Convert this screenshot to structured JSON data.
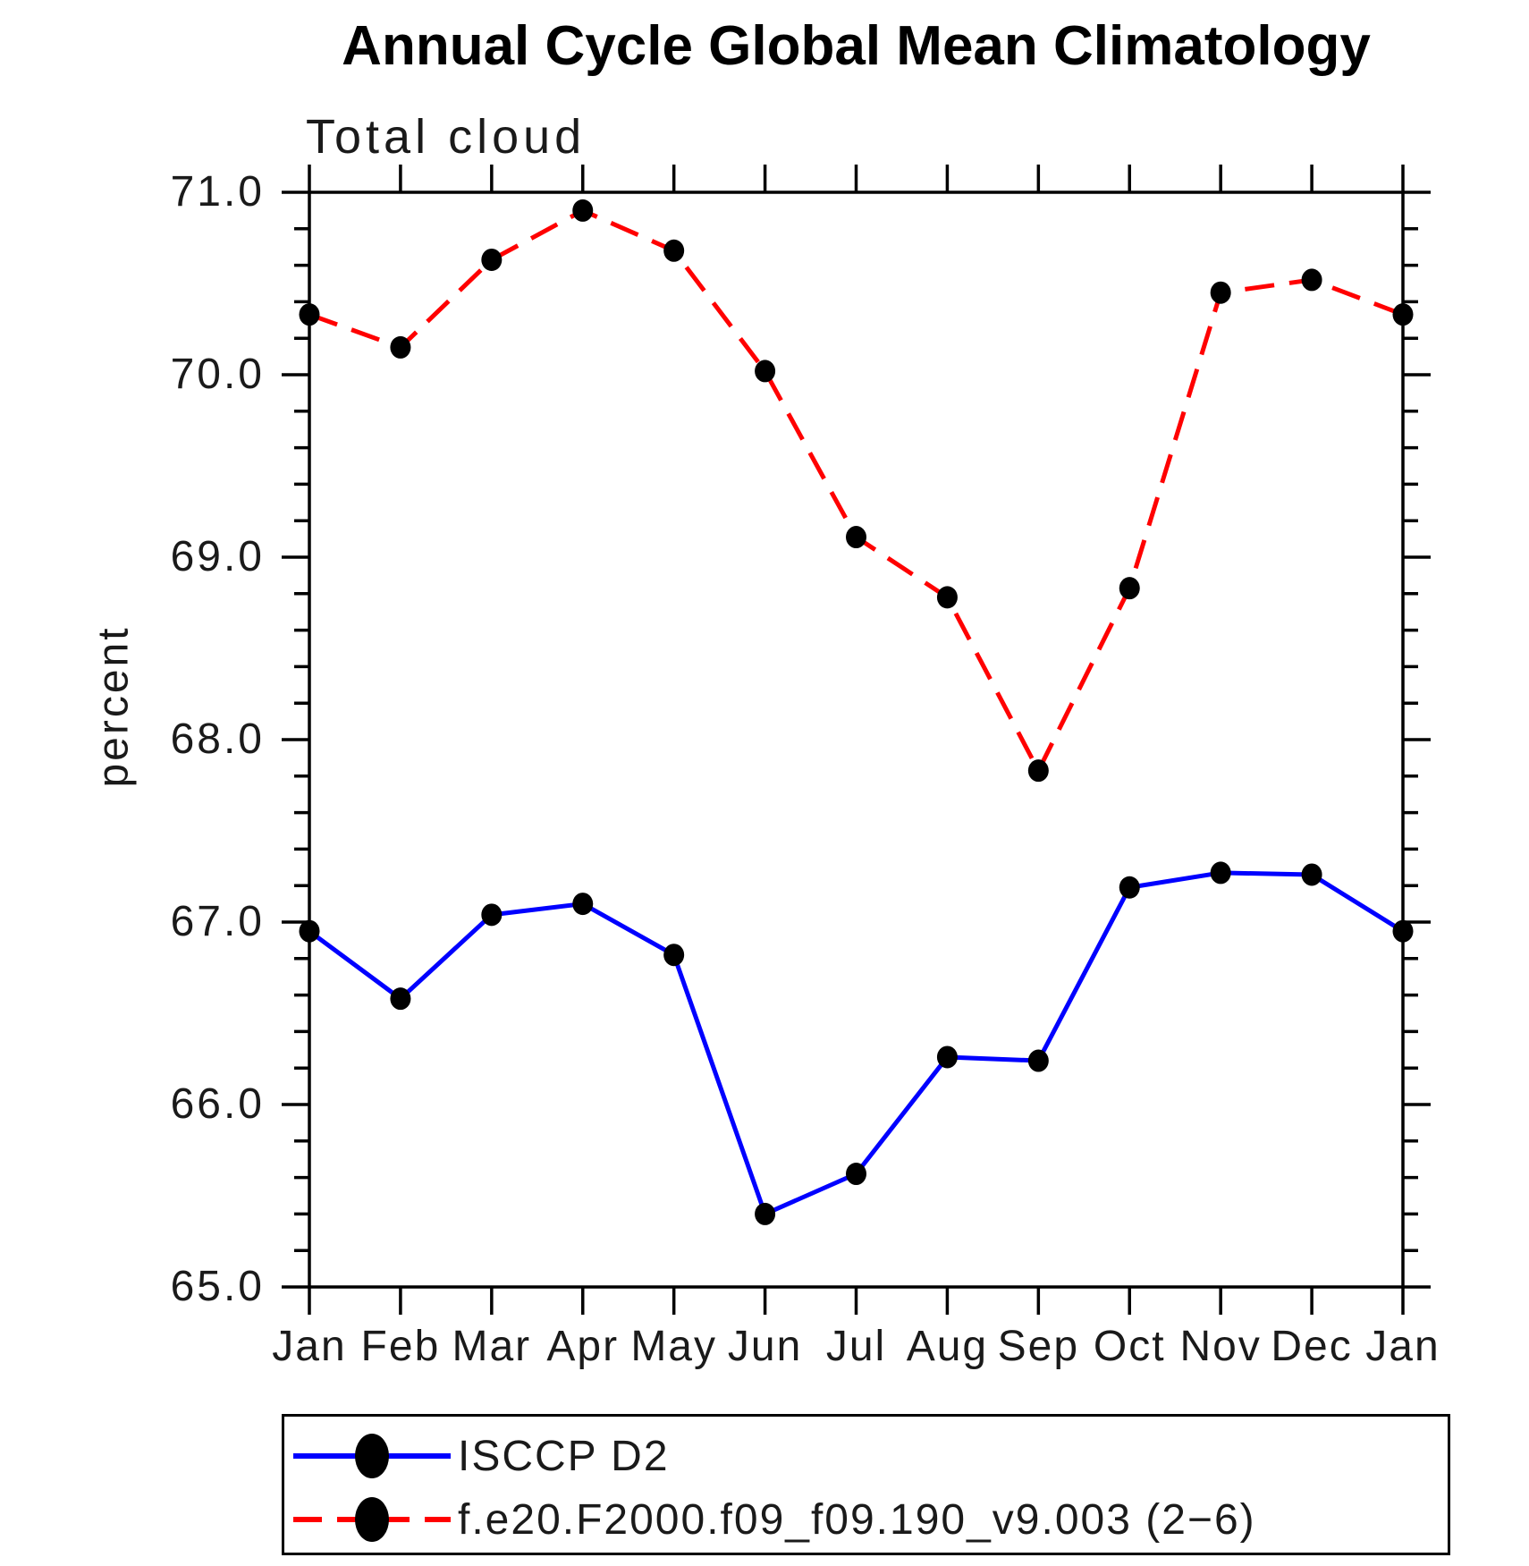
{
  "header": {
    "title": "Annual Cycle Global Mean Climatology",
    "subtitle": "Total cloud"
  },
  "axes": {
    "ylabel": "percent"
  },
  "chart_data": {
    "type": "line",
    "title": "Annual Cycle Global Mean Climatology",
    "subtitle": "Total cloud",
    "xlabel": "",
    "ylabel": "percent",
    "x_categories": [
      "Jan",
      "Feb",
      "Mar",
      "Apr",
      "May",
      "Jun",
      "Jul",
      "Aug",
      "Sep",
      "Oct",
      "Nov",
      "Dec",
      "Jan"
    ],
    "ylim": [
      65.0,
      71.0
    ],
    "ytick_major_step": 1.0,
    "ytick_minor_step": 0.2,
    "ytick_labels": [
      "71.0",
      "70.0",
      "69.0",
      "68.0",
      "67.0",
      "66.0",
      "65.0"
    ],
    "grid": false,
    "legend_position": "bottom-left",
    "axis_color": "#000000",
    "marker_color": "#000000",
    "series": [
      {
        "name": "ISCCP D2",
        "color": "#0000ff",
        "style": "solid",
        "marker": "filled-circle",
        "values": [
          66.95,
          66.58,
          67.04,
          67.1,
          66.82,
          65.4,
          65.62,
          66.26,
          66.24,
          67.19,
          67.27,
          67.26,
          66.95
        ]
      },
      {
        "name": "f.e20.F2000.f09_f09.190_v9.003 (2−6)",
        "color": "#ff0000",
        "style": "dashed",
        "marker": "filled-circle",
        "values": [
          70.33,
          70.15,
          70.63,
          70.9,
          70.68,
          70.02,
          69.11,
          68.78,
          67.83,
          68.83,
          70.45,
          70.52,
          70.33
        ]
      }
    ]
  }
}
